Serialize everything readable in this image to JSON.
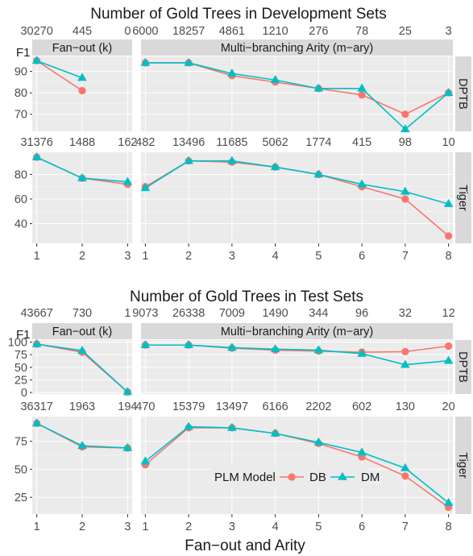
{
  "colors": {
    "DB": "#F8766D",
    "DM": "#00BFC4",
    "panel_bg": "#EBEBEB",
    "strip_bg": "#D9D9D9",
    "grid": "#FFFFFF"
  },
  "xlabel": "Fan−out and Arity",
  "legend": {
    "title": "PLM Model",
    "entries": [
      "DB",
      "DM"
    ],
    "placement": "inside bottom-right of Tiger test panel"
  },
  "chart_data": [
    {
      "type": "line",
      "title": "Number of Gold Trees in Development Sets",
      "ylabel": "F1",
      "facets": [
        "Fan−out (k)",
        "Multi−branching Arity (m−ary)"
      ],
      "rows": [
        "DPTB",
        "Tiger"
      ],
      "x": {
        "fanout": [
          1,
          2,
          3
        ],
        "arity": [
          1,
          2,
          3,
          4,
          5,
          6,
          7,
          8
        ]
      },
      "panels": [
        {
          "row": "DPTB",
          "facet": "fanout",
          "top_counts": [
            "30270",
            "445",
            "0"
          ],
          "y_ticks": [
            70,
            80,
            90
          ],
          "ylim": [
            62,
            97
          ],
          "series": [
            {
              "name": "DB",
              "values": [
                95,
                81,
                null
              ]
            },
            {
              "name": "DM",
              "values": [
                95,
                87,
                null
              ]
            }
          ]
        },
        {
          "row": "DPTB",
          "facet": "arity",
          "top_counts": [
            "6000",
            "18257",
            "4861",
            "1210",
            "276",
            "78",
            "25",
            "3"
          ],
          "y_ticks": [
            70,
            80,
            90
          ],
          "ylim": [
            62,
            97
          ],
          "series": [
            {
              "name": "DB",
              "values": [
                94,
                94,
                88,
                85,
                82,
                79,
                70,
                80
              ]
            },
            {
              "name": "DM",
              "values": [
                94,
                94,
                89,
                86,
                82,
                82,
                63,
                80
              ]
            }
          ]
        },
        {
          "row": "Tiger",
          "facet": "fanout",
          "top_counts": [
            "31376",
            "1488",
            "162"
          ],
          "y_ticks": [
            40,
            60,
            80
          ],
          "ylim": [
            24,
            98
          ],
          "series": [
            {
              "name": "DB",
              "values": [
                94,
                77,
                72
              ]
            },
            {
              "name": "DM",
              "values": [
                94,
                77,
                74
              ]
            }
          ]
        },
        {
          "row": "Tiger",
          "facet": "arity",
          "top_counts": [
            "482",
            "13496",
            "11685",
            "5062",
            "1774",
            "415",
            "98",
            "10"
          ],
          "y_ticks": [
            40,
            60,
            80
          ],
          "ylim": [
            24,
            98
          ],
          "series": [
            {
              "name": "DB",
              "values": [
                70,
                91,
                90,
                86,
                80,
                70,
                60,
                30
              ]
            },
            {
              "name": "DM",
              "values": [
                69,
                91,
                91,
                86,
                80,
                72,
                66,
                56
              ]
            }
          ]
        }
      ]
    },
    {
      "type": "line",
      "title": "Number of Gold Trees in Test Sets",
      "ylabel": "F1",
      "facets": [
        "Fan−out (k)",
        "Multi−branching Arity (m−ary)"
      ],
      "rows": [
        "DPTB",
        "Tiger"
      ],
      "x": {
        "fanout": [
          1,
          2,
          3
        ],
        "arity": [
          1,
          2,
          3,
          4,
          5,
          6,
          7,
          8
        ]
      },
      "panels": [
        {
          "row": "DPTB",
          "facet": "fanout",
          "top_counts": [
            "43667",
            "730",
            "1"
          ],
          "y_ticks": [
            0,
            25,
            50,
            75,
            100
          ],
          "ylim": [
            -3,
            104
          ],
          "series": [
            {
              "name": "DB",
              "values": [
                96,
                80,
                1
              ]
            },
            {
              "name": "DM",
              "values": [
                96,
                83,
                1
              ]
            }
          ]
        },
        {
          "row": "DPTB",
          "facet": "arity",
          "top_counts": [
            "9073",
            "26338",
            "7009",
            "1490",
            "344",
            "96",
            "32",
            "12"
          ],
          "y_ticks": [
            0,
            25,
            50,
            75,
            100
          ],
          "ylim": [
            -3,
            104
          ],
          "series": [
            {
              "name": "DB",
              "values": [
                94,
                94,
                88,
                84,
                82,
                80,
                81,
                92
              ]
            },
            {
              "name": "DM",
              "values": [
                94,
                94,
                89,
                86,
                84,
                77,
                55,
                63
              ]
            }
          ]
        },
        {
          "row": "Tiger",
          "facet": "fanout",
          "top_counts": [
            "36317",
            "1963",
            "194"
          ],
          "y_ticks": [
            25,
            50,
            75
          ],
          "ylim": [
            10,
            97
          ],
          "series": [
            {
              "name": "DB",
              "values": [
                91,
                70,
                69
              ]
            },
            {
              "name": "DM",
              "values": [
                91,
                71,
                69
              ]
            }
          ]
        },
        {
          "row": "Tiger",
          "facet": "arity",
          "top_counts": [
            "470",
            "15379",
            "13497",
            "6166",
            "2202",
            "602",
            "130",
            "20"
          ],
          "y_ticks": [
            25,
            50,
            75
          ],
          "ylim": [
            10,
            97
          ],
          "series": [
            {
              "name": "DB",
              "values": [
                54,
                87,
                87,
                82,
                73,
                61,
                44,
                16
              ]
            },
            {
              "name": "DM",
              "values": [
                57,
                88,
                87,
                82,
                74,
                65,
                51,
                20
              ]
            }
          ]
        }
      ]
    }
  ]
}
